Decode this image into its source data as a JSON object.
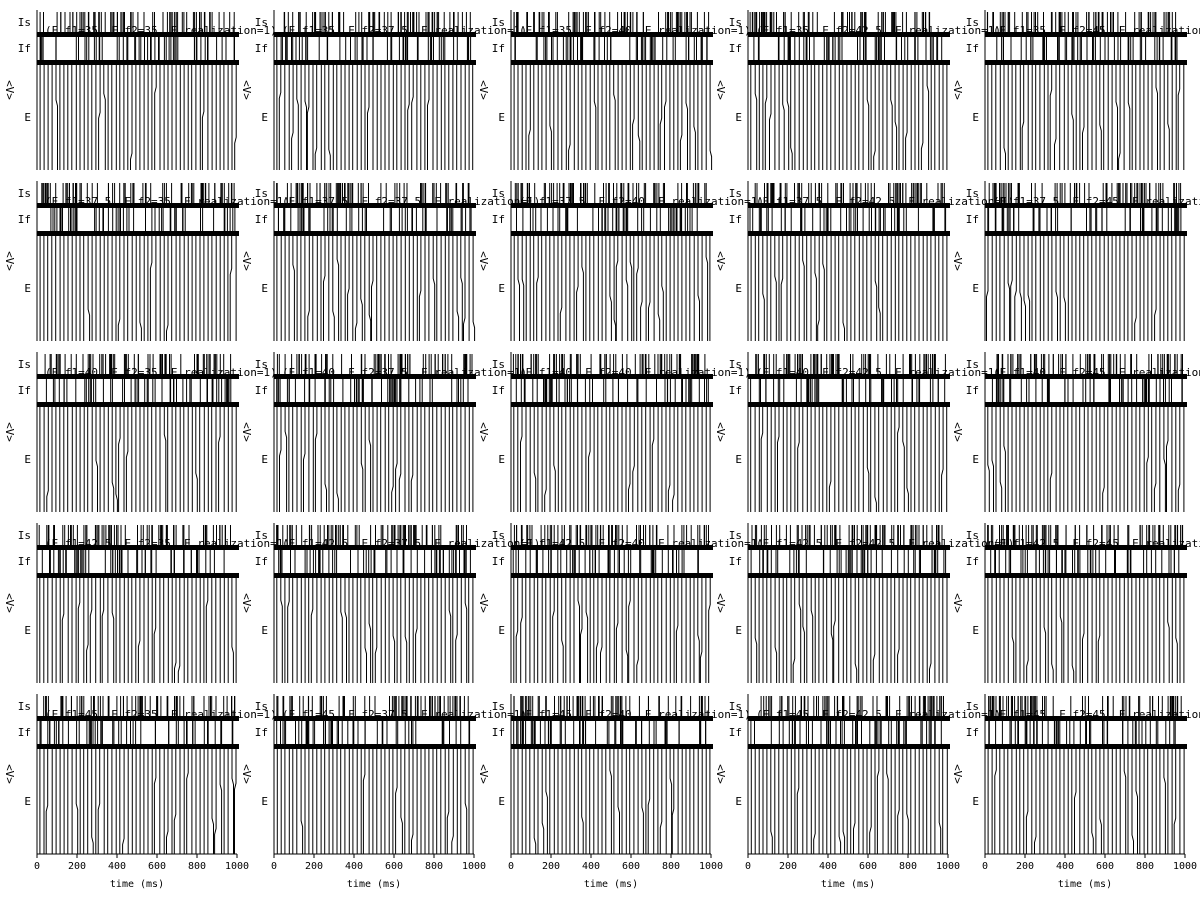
{
  "colors": {
    "background": "#ffffff",
    "foreground": "#000000"
  },
  "chart_data": {
    "type": "raster",
    "rows": 5,
    "cols": 5,
    "xlim": [
      0,
      1000
    ],
    "xticks": [
      0,
      200,
      400,
      600,
      800,
      1000
    ],
    "xtick_labels": [
      "0",
      "200",
      "400",
      "600",
      "800",
      "1000"
    ],
    "xlabel": "time (ms)",
    "ylabel": "<V>",
    "rows_labels": [
      "Is",
      "If",
      "E"
    ],
    "panels": [
      {
        "title": "(E_f1=35, E_f2=35, E_realization=1)"
      },
      {
        "title": "(E_f1=35, E_f2=37.5, E_realization=1)"
      },
      {
        "title": "(E_f1=35, E_f2=40, E_realization=1)"
      },
      {
        "title": "(E_f1=35, E_f2=42.5, E_realization=1)"
      },
      {
        "title": "(E_f1=35, E_f2=45, E_realization=1)"
      },
      {
        "title": "(E_f1=37.5, E_f2=35, E_realization=1)"
      },
      {
        "title": "(E_f1=37.5, E_f2=37.5, E_realization=1)"
      },
      {
        "title": "(E_f1=37.5, E_f2=40, E_realization=1)"
      },
      {
        "title": "(E_f1=37.5, E_f2=42.5, E_realization=1)"
      },
      {
        "title": "(E_f1=37.5, E_f2=45, E_realization=1)"
      },
      {
        "title": "(E_f1=40, E_f2=35, E_realization=1)"
      },
      {
        "title": "(E_f1=40, E_f2=37.5, E_realization=1)"
      },
      {
        "title": "(E_f1=40, E_f2=40, E_realization=1)"
      },
      {
        "title": "(E_f1=40, E_f2=42.5, E_realization=1)"
      },
      {
        "title": "(E_f1=40, E_f2=45, E_realization=1)"
      },
      {
        "title": "(E_f1=42.5, E_f2=35, E_realization=1)"
      },
      {
        "title": "(E_f1=42.5, E_f2=37.5, E_realization=1)"
      },
      {
        "title": "(E_f1=42.5, E_f2=40, E_realization=1)"
      },
      {
        "title": "(E_f1=42.5, E_f2=42.5, E_realization=1)"
      },
      {
        "title": "(E_f1=42.5, E_f2=45, E_realization=1)"
      },
      {
        "title": "(E_f1=45, E_f2=35, E_realization=1)"
      },
      {
        "title": "(E_f1=45, E_f2=37.5, E_realization=1)"
      },
      {
        "title": "(E_f1=45, E_f2=40, E_realization=1)"
      },
      {
        "title": "(E_f1=45, E_f2=42.5, E_realization=1)"
      },
      {
        "title": "(E_f1=45, E_f2=45, E_realization=1)"
      }
    ]
  }
}
